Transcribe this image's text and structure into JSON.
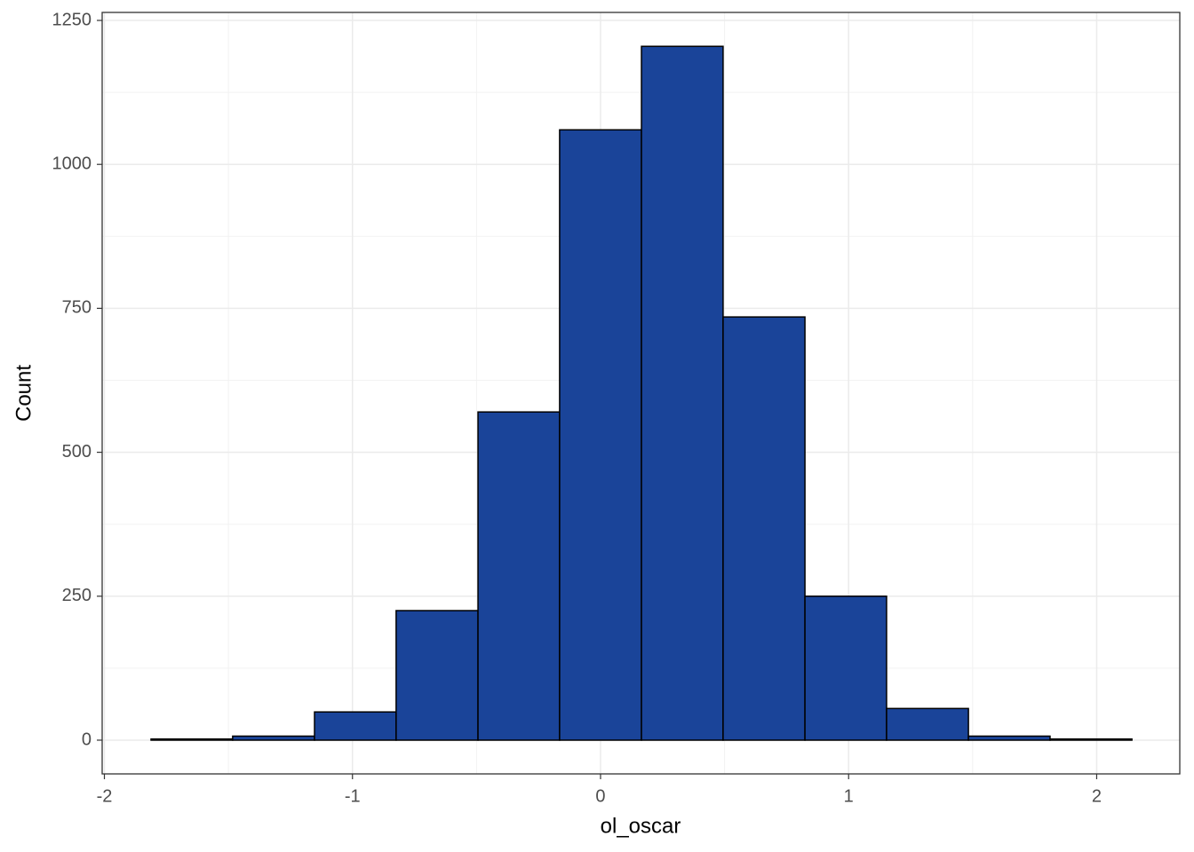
{
  "chart_data": {
    "type": "histogram",
    "x_label": "ol_oscar",
    "y_label": "Count",
    "bins": [
      -1.812,
      -1.483,
      -1.153,
      -0.824,
      -0.494,
      -0.165,
      0.165,
      0.494,
      0.824,
      1.153,
      1.483,
      1.812,
      2.142
    ],
    "values": [
      2,
      7,
      49,
      225,
      570,
      1060,
      1205,
      735,
      250,
      55,
      7,
      2
    ],
    "color": "#1a4499",
    "edge_color": "#000000",
    "xlim": [
      -2.009,
      2.335
    ],
    "xticks": [
      -2,
      -1,
      0,
      1,
      2
    ],
    "ylim": [
      -58.6,
      1263.9
    ],
    "yticks": [
      0,
      250,
      500,
      750,
      1000,
      1250
    ],
    "grid": true,
    "minor_grid": true
  }
}
